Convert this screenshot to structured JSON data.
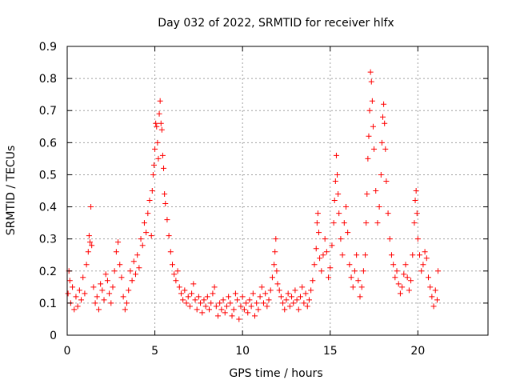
{
  "chart_data": {
    "type": "scatter",
    "title": "Day 032 of 2022, SRMTID for receiver hlfx",
    "xlabel": "GPS time / hours",
    "ylabel": "SRMTID / TECUs",
    "xlim": [
      0,
      24
    ],
    "ylim": [
      0,
      0.9
    ],
    "xticks": [
      0,
      5,
      10,
      15,
      20
    ],
    "xtick_labels": [
      "0",
      "5",
      "10",
      "15",
      "20"
    ],
    "yticks": [
      0,
      0.1,
      0.2,
      0.3,
      0.4,
      0.5,
      0.6,
      0.7,
      0.8,
      0.9
    ],
    "ytick_labels": [
      "0",
      "0.1",
      "0.2",
      "0.3",
      "0.4",
      "0.5",
      "0.6",
      "0.7",
      "0.8",
      "0.9"
    ],
    "grid": true,
    "marker": "+",
    "color": "#ff0000",
    "series": [
      {
        "name": "SRMTID",
        "points": [
          [
            0.05,
            0.13
          ],
          [
            0.1,
            0.2
          ],
          [
            0.15,
            0.17
          ],
          [
            0.2,
            0.1
          ],
          [
            0.3,
            0.15
          ],
          [
            0.4,
            0.08
          ],
          [
            0.5,
            0.12
          ],
          [
            0.6,
            0.09
          ],
          [
            0.7,
            0.14
          ],
          [
            0.8,
            0.11
          ],
          [
            0.9,
            0.18
          ],
          [
            1.0,
            0.13
          ],
          [
            1.1,
            0.22
          ],
          [
            1.2,
            0.26
          ],
          [
            1.25,
            0.31
          ],
          [
            1.3,
            0.29
          ],
          [
            1.35,
            0.4
          ],
          [
            1.4,
            0.28
          ],
          [
            1.5,
            0.15
          ],
          [
            1.6,
            0.1
          ],
          [
            1.7,
            0.12
          ],
          [
            1.8,
            0.08
          ],
          [
            1.9,
            0.16
          ],
          [
            2.0,
            0.14
          ],
          [
            2.1,
            0.11
          ],
          [
            2.2,
            0.19
          ],
          [
            2.3,
            0.17
          ],
          [
            2.4,
            0.13
          ],
          [
            2.5,
            0.1
          ],
          [
            2.6,
            0.15
          ],
          [
            2.7,
            0.2
          ],
          [
            2.8,
            0.26
          ],
          [
            2.9,
            0.29
          ],
          [
            3.0,
            0.22
          ],
          [
            3.1,
            0.18
          ],
          [
            3.2,
            0.12
          ],
          [
            3.3,
            0.08
          ],
          [
            3.4,
            0.1
          ],
          [
            3.5,
            0.14
          ],
          [
            3.6,
            0.2
          ],
          [
            3.7,
            0.17
          ],
          [
            3.8,
            0.23
          ],
          [
            3.9,
            0.19
          ],
          [
            4.0,
            0.25
          ],
          [
            4.1,
            0.21
          ],
          [
            4.2,
            0.3
          ],
          [
            4.3,
            0.28
          ],
          [
            4.4,
            0.35
          ],
          [
            4.5,
            0.32
          ],
          [
            4.6,
            0.38
          ],
          [
            4.7,
            0.42
          ],
          [
            4.8,
            0.31
          ],
          [
            4.85,
            0.45
          ],
          [
            4.9,
            0.5
          ],
          [
            4.95,
            0.53
          ],
          [
            5.0,
            0.58
          ],
          [
            5.05,
            0.66
          ],
          [
            5.1,
            0.65
          ],
          [
            5.15,
            0.6
          ],
          [
            5.2,
            0.55
          ],
          [
            5.25,
            0.69
          ],
          [
            5.3,
            0.73
          ],
          [
            5.35,
            0.66
          ],
          [
            5.4,
            0.64
          ],
          [
            5.45,
            0.56
          ],
          [
            5.5,
            0.52
          ],
          [
            5.55,
            0.44
          ],
          [
            5.6,
            0.41
          ],
          [
            5.7,
            0.36
          ],
          [
            5.8,
            0.31
          ],
          [
            5.9,
            0.26
          ],
          [
            6.0,
            0.22
          ],
          [
            6.1,
            0.19
          ],
          [
            6.2,
            0.17
          ],
          [
            6.3,
            0.2
          ],
          [
            6.4,
            0.15
          ],
          [
            6.5,
            0.13
          ],
          [
            6.6,
            0.11
          ],
          [
            6.7,
            0.14
          ],
          [
            6.8,
            0.1
          ],
          [
            6.9,
            0.12
          ],
          [
            7.0,
            0.09
          ],
          [
            7.1,
            0.13
          ],
          [
            7.2,
            0.16
          ],
          [
            7.3,
            0.11
          ],
          [
            7.4,
            0.08
          ],
          [
            7.5,
            0.12
          ],
          [
            7.6,
            0.1
          ],
          [
            7.7,
            0.07
          ],
          [
            7.8,
            0.11
          ],
          [
            7.9,
            0.09
          ],
          [
            8.0,
            0.12
          ],
          [
            8.1,
            0.08
          ],
          [
            8.2,
            0.1
          ],
          [
            8.3,
            0.13
          ],
          [
            8.4,
            0.15
          ],
          [
            8.5,
            0.09
          ],
          [
            8.6,
            0.06
          ],
          [
            8.7,
            0.1
          ],
          [
            8.8,
            0.08
          ],
          [
            8.9,
            0.11
          ],
          [
            9.0,
            0.07
          ],
          [
            9.1,
            0.09
          ],
          [
            9.2,
            0.12
          ],
          [
            9.3,
            0.1
          ],
          [
            9.4,
            0.06
          ],
          [
            9.5,
            0.08
          ],
          [
            9.6,
            0.13
          ],
          [
            9.7,
            0.11
          ],
          [
            9.8,
            0.05
          ],
          [
            9.9,
            0.09
          ],
          [
            10.0,
            0.12
          ],
          [
            10.1,
            0.08
          ],
          [
            10.2,
            0.1
          ],
          [
            10.3,
            0.07
          ],
          [
            10.4,
            0.11
          ],
          [
            10.5,
            0.09
          ],
          [
            10.6,
            0.13
          ],
          [
            10.7,
            0.06
          ],
          [
            10.8,
            0.1
          ],
          [
            10.9,
            0.08
          ],
          [
            11.0,
            0.12
          ],
          [
            11.1,
            0.15
          ],
          [
            11.2,
            0.1
          ],
          [
            11.3,
            0.13
          ],
          [
            11.4,
            0.09
          ],
          [
            11.5,
            0.11
          ],
          [
            11.6,
            0.14
          ],
          [
            11.7,
            0.18
          ],
          [
            11.8,
            0.22
          ],
          [
            11.85,
            0.26
          ],
          [
            11.9,
            0.3
          ],
          [
            11.95,
            0.2
          ],
          [
            12.0,
            0.16
          ],
          [
            12.1,
            0.14
          ],
          [
            12.2,
            0.12
          ],
          [
            12.3,
            0.1
          ],
          [
            12.4,
            0.08
          ],
          [
            12.5,
            0.11
          ],
          [
            12.6,
            0.13
          ],
          [
            12.7,
            0.09
          ],
          [
            12.8,
            0.12
          ],
          [
            12.9,
            0.1
          ],
          [
            13.0,
            0.14
          ],
          [
            13.1,
            0.11
          ],
          [
            13.2,
            0.08
          ],
          [
            13.3,
            0.12
          ],
          [
            13.4,
            0.15
          ],
          [
            13.5,
            0.1
          ],
          [
            13.6,
            0.13
          ],
          [
            13.7,
            0.09
          ],
          [
            13.8,
            0.11
          ],
          [
            13.9,
            0.14
          ],
          [
            14.0,
            0.17
          ],
          [
            14.1,
            0.22
          ],
          [
            14.2,
            0.27
          ],
          [
            14.25,
            0.35
          ],
          [
            14.3,
            0.38
          ],
          [
            14.35,
            0.32
          ],
          [
            14.4,
            0.24
          ],
          [
            14.5,
            0.2
          ],
          [
            14.6,
            0.25
          ],
          [
            14.7,
            0.3
          ],
          [
            14.8,
            0.26
          ],
          [
            14.9,
            0.18
          ],
          [
            15.0,
            0.21
          ],
          [
            15.1,
            0.28
          ],
          [
            15.2,
            0.35
          ],
          [
            15.25,
            0.42
          ],
          [
            15.3,
            0.48
          ],
          [
            15.35,
            0.56
          ],
          [
            15.4,
            0.5
          ],
          [
            15.45,
            0.44
          ],
          [
            15.5,
            0.38
          ],
          [
            15.6,
            0.3
          ],
          [
            15.7,
            0.25
          ],
          [
            15.8,
            0.35
          ],
          [
            15.9,
            0.4
          ],
          [
            16.0,
            0.32
          ],
          [
            16.1,
            0.22
          ],
          [
            16.2,
            0.18
          ],
          [
            16.3,
            0.15
          ],
          [
            16.4,
            0.2
          ],
          [
            16.5,
            0.25
          ],
          [
            16.6,
            0.17
          ],
          [
            16.7,
            0.12
          ],
          [
            16.8,
            0.15
          ],
          [
            16.9,
            0.2
          ],
          [
            17.0,
            0.25
          ],
          [
            17.05,
            0.35
          ],
          [
            17.1,
            0.44
          ],
          [
            17.15,
            0.55
          ],
          [
            17.2,
            0.62
          ],
          [
            17.25,
            0.7
          ],
          [
            17.3,
            0.82
          ],
          [
            17.35,
            0.79
          ],
          [
            17.4,
            0.73
          ],
          [
            17.45,
            0.65
          ],
          [
            17.5,
            0.58
          ],
          [
            17.6,
            0.45
          ],
          [
            17.7,
            0.35
          ],
          [
            17.8,
            0.4
          ],
          [
            17.9,
            0.5
          ],
          [
            17.95,
            0.6
          ],
          [
            18.0,
            0.68
          ],
          [
            18.05,
            0.72
          ],
          [
            18.1,
            0.66
          ],
          [
            18.15,
            0.58
          ],
          [
            18.2,
            0.48
          ],
          [
            18.3,
            0.38
          ],
          [
            18.4,
            0.3
          ],
          [
            18.5,
            0.25
          ],
          [
            18.6,
            0.22
          ],
          [
            18.7,
            0.18
          ],
          [
            18.8,
            0.2
          ],
          [
            18.9,
            0.16
          ],
          [
            19.0,
            0.13
          ],
          [
            19.1,
            0.15
          ],
          [
            19.2,
            0.19
          ],
          [
            19.3,
            0.22
          ],
          [
            19.4,
            0.18
          ],
          [
            19.5,
            0.14
          ],
          [
            19.6,
            0.17
          ],
          [
            19.7,
            0.25
          ],
          [
            19.8,
            0.35
          ],
          [
            19.85,
            0.42
          ],
          [
            19.9,
            0.45
          ],
          [
            19.95,
            0.38
          ],
          [
            20.0,
            0.3
          ],
          [
            20.1,
            0.25
          ],
          [
            20.2,
            0.2
          ],
          [
            20.3,
            0.22
          ],
          [
            20.4,
            0.26
          ],
          [
            20.5,
            0.24
          ],
          [
            20.6,
            0.18
          ],
          [
            20.7,
            0.15
          ],
          [
            20.8,
            0.12
          ],
          [
            20.9,
            0.09
          ],
          [
            21.0,
            0.14
          ],
          [
            21.1,
            0.11
          ],
          [
            21.15,
            0.2
          ]
        ]
      }
    ]
  }
}
